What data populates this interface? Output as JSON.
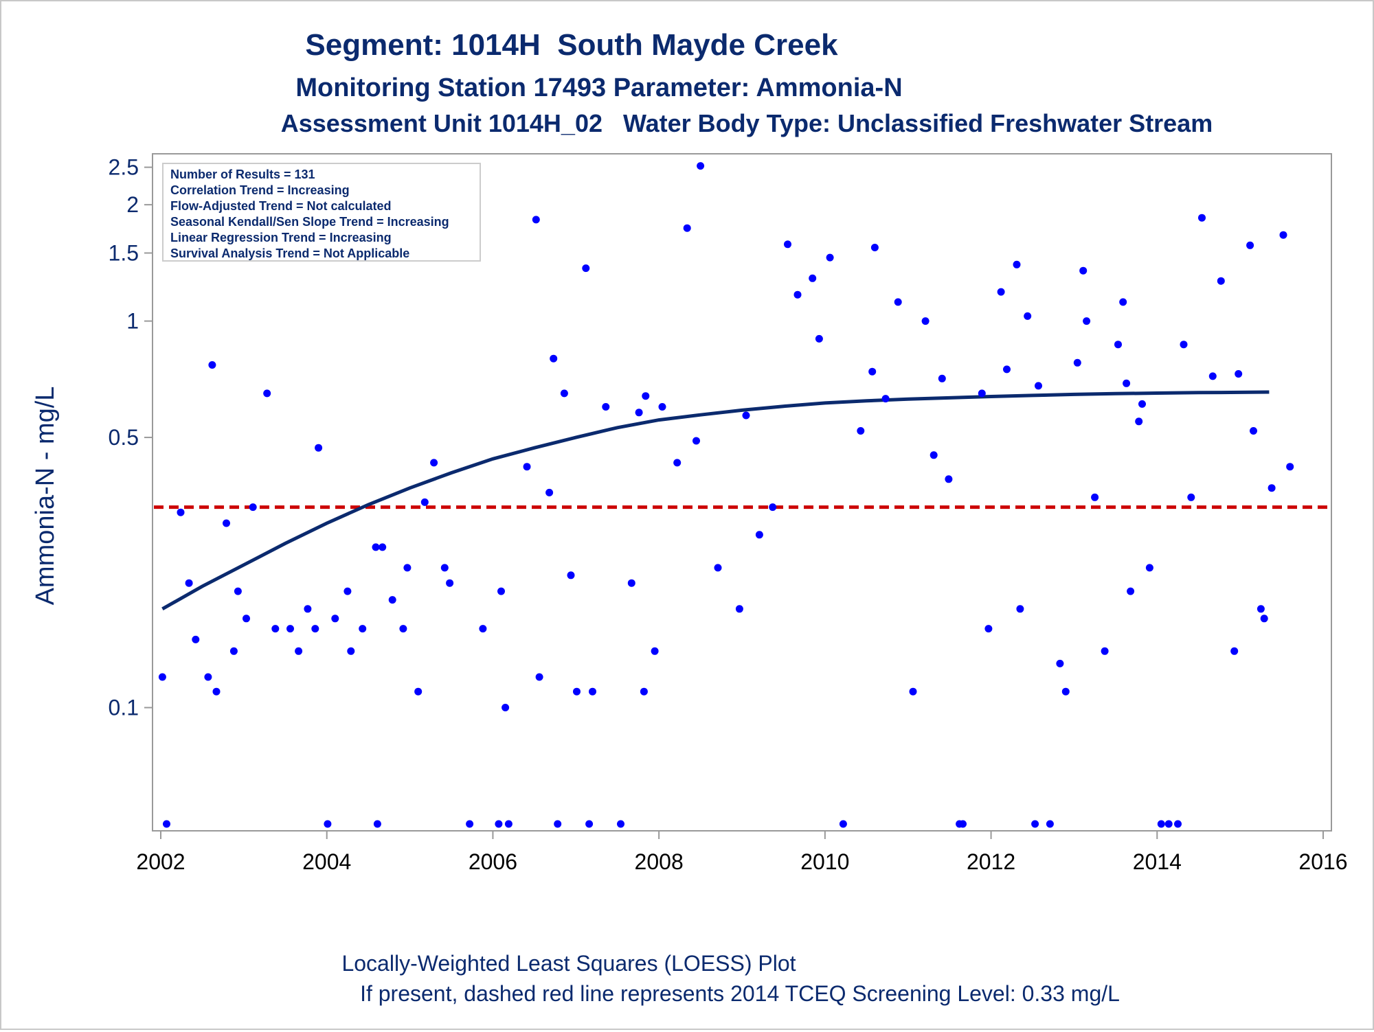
{
  "chart_data": {
    "type": "scatter",
    "title": "Segment: 1014H  South Mayde Creek",
    "subtitle": "Monitoring Station 17493 Parameter: Ammonia-N",
    "subtitle2": "Assessment Unit 1014H_02   Water Body Type: Unclassified Freshwater Stream",
    "ylabel": "Ammonia-N - mg/L",
    "xlabel": "",
    "y_scale": "log",
    "xlim": [
      2002.0,
      2016.0
    ],
    "ylim": [
      0.05,
      2.6
    ],
    "x_ticks": [
      2002,
      2004,
      2006,
      2008,
      2010,
      2012,
      2014,
      2016
    ],
    "x_tick_labels": [
      "2002",
      "2004",
      "2006",
      "2008",
      "2010",
      "2012",
      "2014",
      "2016"
    ],
    "y_ticks": [
      0.1,
      0.5,
      1,
      1.5,
      2,
      2.5
    ],
    "y_tick_labels": [
      "0.1",
      "0.5",
      "1",
      "1.5",
      "2",
      "2.5"
    ],
    "stats_box": [
      "Number of Results = 131",
      "Correlation Trend = Increasing",
      "Flow-Adjusted Trend = Not calculated",
      "Seasonal Kendall/Sen Slope Trend = Increasing",
      "Linear Regression Trend = Increasing",
      "Survival Analysis Trend = Not Applicable"
    ],
    "footnote_1": "Locally-Weighted Least Squares (LOESS) Plot",
    "footnote_2": "If present, dashed red line represents 2014 TCEQ Screening Level: 0.33 mg/L",
    "screening_level": 0.33,
    "colors": {
      "points": "#0000ff",
      "loess": "#0b2a6e",
      "screening": "#cc0000",
      "text": "#0b2a6e",
      "axis": "#999999"
    },
    "series": [
      {
        "x": [
          2002.02,
          2002.07,
          2002.19,
          2002.24,
          2002.34,
          2002.42,
          2002.57,
          2002.62,
          2002.67,
          2002.79,
          2002.88,
          2002.93,
          2003.03,
          2003.11,
          2003.28,
          2003.38,
          2003.56,
          2003.66,
          2003.77,
          2003.86,
          2003.9,
          2004.01,
          2004.1,
          2004.25,
          2004.29,
          2004.43,
          2004.59,
          2004.61,
          2004.67,
          2004.79,
          2004.92,
          2004.97,
          2005.1,
          2005.18,
          2005.29,
          2005.42,
          2005.48,
          2005.72,
          2005.88,
          2006.07,
          2006.1,
          2006.15,
          2006.19,
          2006.41,
          2006.52,
          2006.56,
          2006.68,
          2006.73,
          2006.78,
          2006.86,
          2006.94,
          2007.01,
          2007.12,
          2007.16,
          2007.2,
          2007.36,
          2007.54,
          2007.67,
          2007.76,
          2007.82,
          2007.84,
          2007.95,
          2008.04,
          2008.22,
          2008.34,
          2008.45,
          2008.5,
          2008.71,
          2008.97,
          2009.05,
          2009.21,
          2009.37,
          2009.55,
          2009.67,
          2009.85,
          2009.93,
          2010.06,
          2010.22,
          2010.43,
          2010.57,
          2010.6,
          2010.73,
          2010.88,
          2011.06,
          2011.21,
          2011.31,
          2011.41,
          2011.49,
          2011.62,
          2011.66,
          2011.89,
          2011.97,
          2012.12,
          2012.19,
          2012.31,
          2012.35,
          2012.44,
          2012.53,
          2012.57,
          2012.71,
          2012.83,
          2012.9,
          2013.04,
          2013.11,
          2013.15,
          2013.25,
          2013.37,
          2013.53,
          2013.59,
          2013.63,
          2013.68,
          2013.78,
          2013.82,
          2013.91,
          2014.05,
          2014.14,
          2014.25,
          2014.32,
          2014.41,
          2014.54,
          2014.67,
          2014.77,
          2014.93,
          2014.98,
          2015.12,
          2015.16,
          2015.25,
          2015.29,
          2015.38,
          2015.52,
          2015.6
        ],
        "y": [
          0.12,
          0.05,
          1.55,
          0.32,
          0.21,
          0.15,
          0.12,
          0.77,
          0.11,
          0.3,
          0.14,
          0.2,
          0.17,
          0.33,
          0.65,
          0.16,
          0.16,
          0.14,
          0.18,
          0.16,
          0.47,
          0.05,
          0.17,
          0.2,
          0.14,
          0.16,
          0.26,
          0.05,
          0.26,
          0.19,
          0.16,
          0.23,
          0.11,
          0.34,
          0.43,
          0.23,
          0.21,
          0.05,
          0.16,
          0.05,
          0.2,
          0.1,
          0.05,
          0.42,
          1.83,
          0.12,
          0.36,
          0.8,
          0.05,
          0.65,
          0.22,
          0.11,
          1.37,
          0.05,
          0.11,
          0.6,
          0.05,
          0.21,
          0.58,
          0.11,
          0.64,
          0.14,
          0.6,
          0.43,
          1.74,
          0.49,
          2.52,
          0.23,
          0.18,
          0.57,
          0.28,
          0.33,
          1.58,
          1.17,
          1.29,
          0.9,
          1.46,
          0.05,
          0.52,
          0.74,
          1.55,
          0.63,
          1.12,
          0.11,
          1.0,
          0.45,
          0.71,
          0.39,
          0.05,
          0.05,
          0.65,
          0.16,
          1.19,
          0.75,
          1.4,
          0.18,
          1.03,
          0.05,
          0.68,
          0.05,
          0.13,
          0.11,
          0.78,
          1.35,
          1.0,
          0.35,
          0.14,
          0.87,
          1.12,
          0.69,
          0.2,
          0.55,
          0.61,
          0.23,
          0.05,
          0.05,
          0.05,
          0.87,
          0.35,
          1.85,
          0.72,
          1.27,
          0.14,
          0.73,
          1.57,
          0.52,
          0.18,
          0.17,
          0.37,
          1.67,
          0.42
        ]
      }
    ],
    "loess": {
      "x": [
        2002.02,
        2002.5,
        2003.0,
        2003.5,
        2004.0,
        2004.5,
        2005.0,
        2005.5,
        2006.0,
        2006.5,
        2007.0,
        2007.5,
        2008.0,
        2008.5,
        2009.0,
        2009.5,
        2010.0,
        2010.5,
        2011.0,
        2011.5,
        2012.0,
        2012.5,
        2013.0,
        2013.5,
        2014.0,
        2014.5,
        2015.0,
        2015.35
      ],
      "y": [
        0.18,
        0.206,
        0.234,
        0.266,
        0.3,
        0.335,
        0.37,
        0.405,
        0.44,
        0.47,
        0.5,
        0.53,
        0.555,
        0.572,
        0.588,
        0.602,
        0.614,
        0.622,
        0.628,
        0.633,
        0.638,
        0.642,
        0.646,
        0.649,
        0.651,
        0.653,
        0.654,
        0.655
      ]
    }
  }
}
